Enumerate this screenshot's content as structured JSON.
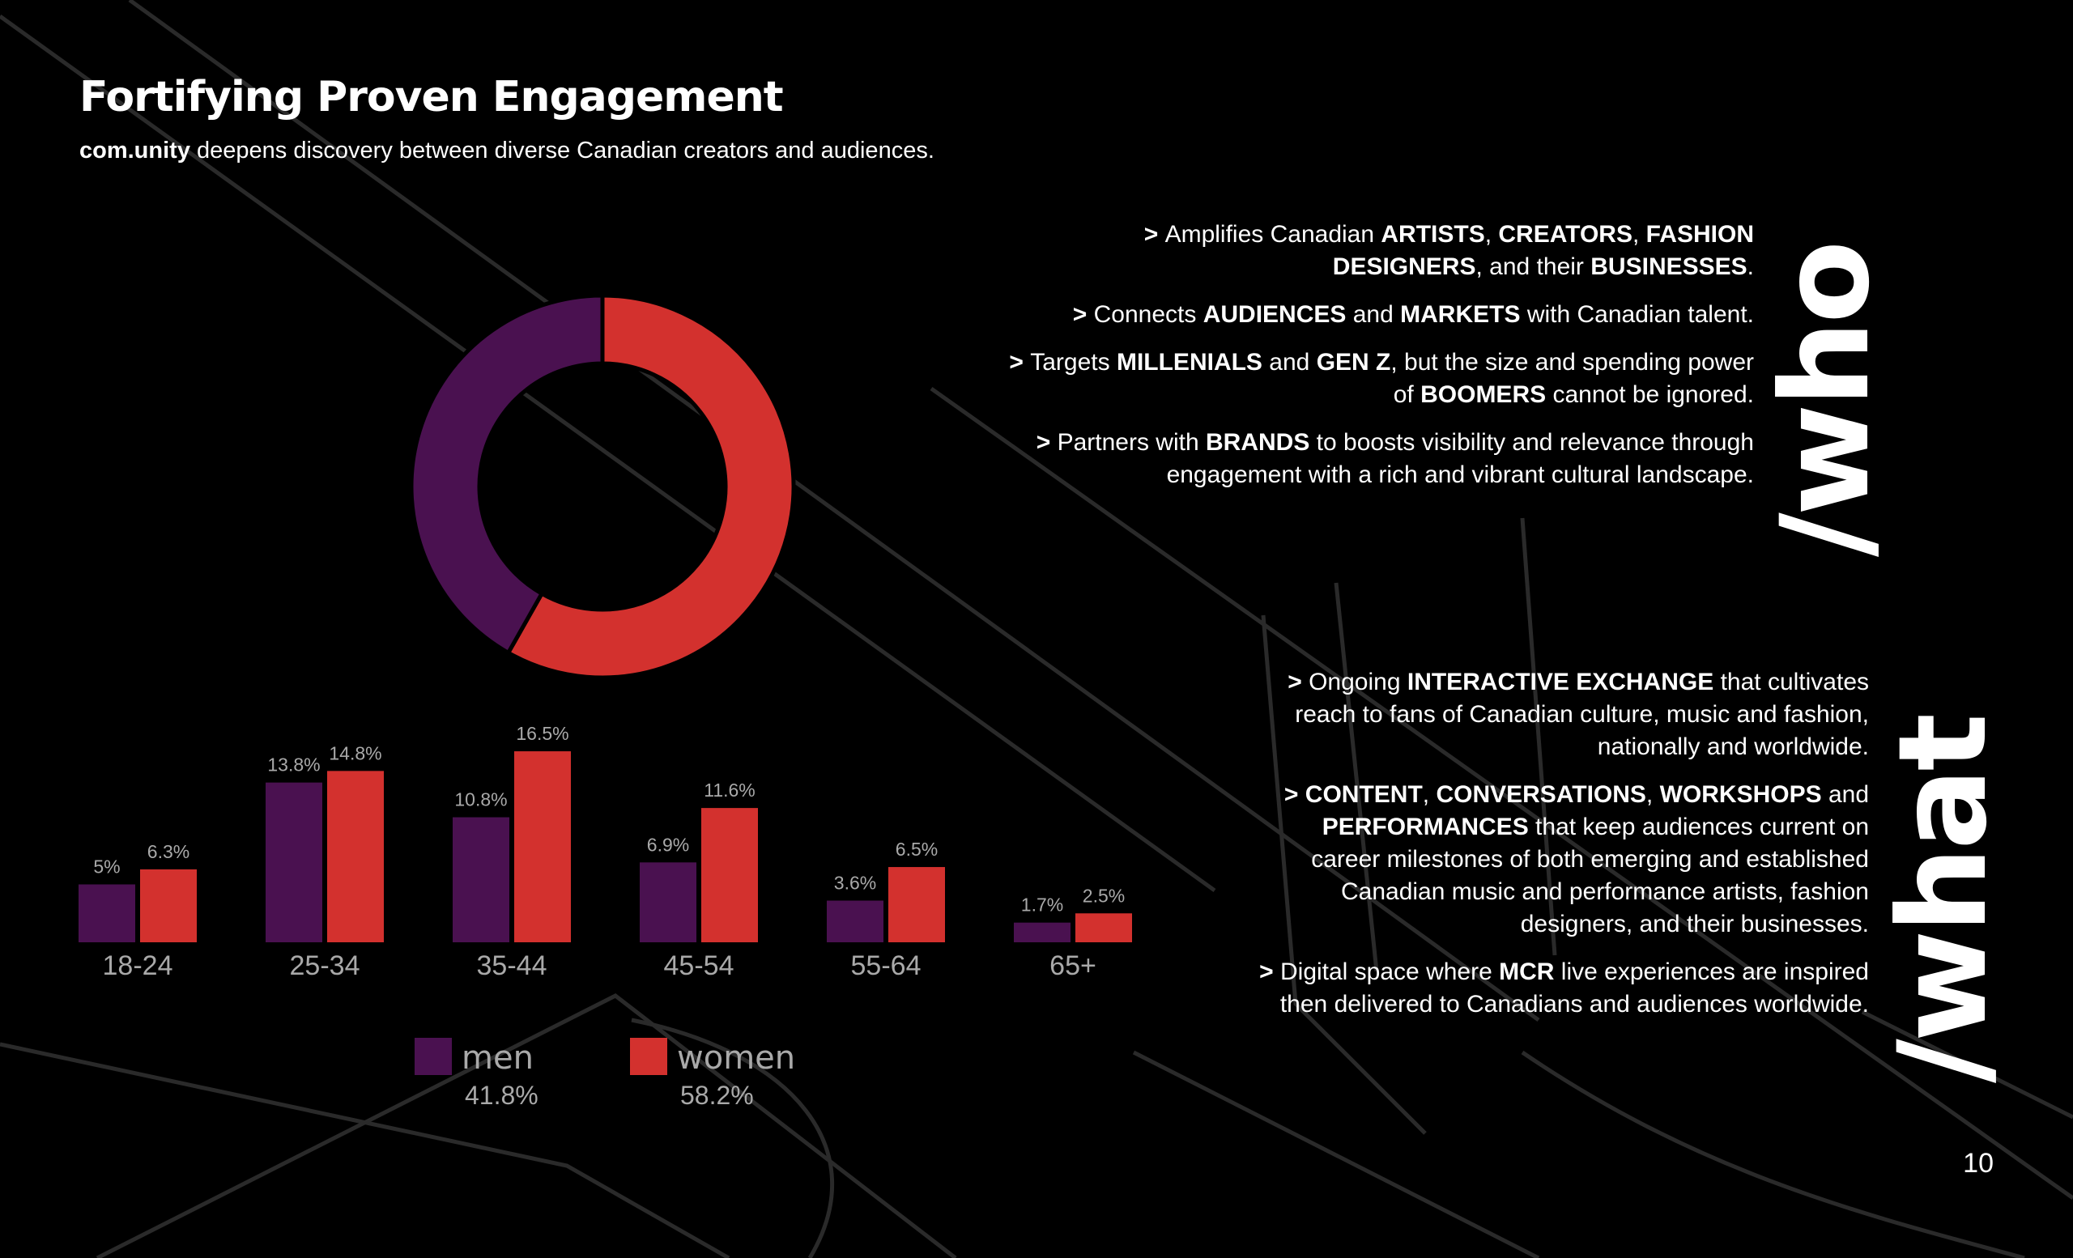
{
  "slide": {
    "title": "Fortifying Proven Engagement",
    "subtitle_brand": "com.unity",
    "subtitle_rest": " deepens discovery between diverse Canadian creators and audiences.",
    "page_number": "10"
  },
  "colors": {
    "men": "#4a1150",
    "women": "#d3312e",
    "background": "#000000",
    "text": "#ffffff",
    "label_gray": "#a9a9a9"
  },
  "who": {
    "heading": "/who",
    "bullets": [
      [
        {
          "t": "> ",
          "b": true
        },
        {
          "t": "Amplifies Canadian "
        },
        {
          "t": "ARTISTS",
          "b": true
        },
        {
          "t": ", "
        },
        {
          "t": "CREATORS",
          "b": true
        },
        {
          "t": ", "
        },
        {
          "t": "FASHION DESIGNERS",
          "b": true
        },
        {
          "t": ", and their "
        },
        {
          "t": "BUSINESSES",
          "b": true
        },
        {
          "t": "."
        }
      ],
      [
        {
          "t": "> ",
          "b": true
        },
        {
          "t": "Connects "
        },
        {
          "t": "AUDIENCES",
          "b": true
        },
        {
          "t": " and "
        },
        {
          "t": "MARKETS",
          "b": true
        },
        {
          "t": " with Canadian talent."
        }
      ],
      [
        {
          "t": "> ",
          "b": true
        },
        {
          "t": "Targets "
        },
        {
          "t": "MILLENIALS",
          "b": true
        },
        {
          "t": " and "
        },
        {
          "t": "GEN Z",
          "b": true
        },
        {
          "t": ", but the size and spending power of "
        },
        {
          "t": "BOOMERS",
          "b": true
        },
        {
          "t": " cannot be ignored."
        }
      ],
      [
        {
          "t": "> ",
          "b": true
        },
        {
          "t": "Partners with "
        },
        {
          "t": "BRANDS",
          "b": true
        },
        {
          "t": " to boosts visibility and relevance through engagement with a rich and vibrant cultural landscape."
        }
      ]
    ]
  },
  "what": {
    "heading": "/what",
    "bullets": [
      [
        {
          "t": "> ",
          "b": true
        },
        {
          "t": "Ongoing "
        },
        {
          "t": "INTERACTIVE EXCHANGE",
          "b": true
        },
        {
          "t": " that cultivates reach to fans of Canadian culture, music and fashion, nationally and worldwide."
        }
      ],
      [
        {
          "t": "> ",
          "b": true
        },
        {
          "t": "CONTENT",
          "b": true
        },
        {
          "t": ", "
        },
        {
          "t": "CONVERSATIONS",
          "b": true
        },
        {
          "t": ", "
        },
        {
          "t": "WORKSHOPS",
          "b": true
        },
        {
          "t": " and "
        },
        {
          "t": "PERFORMANCES",
          "b": true
        },
        {
          "t": " that keep audiences current on career milestones of both emerging and established Canadian music and performance artists, fashion designers, and their businesses."
        }
      ],
      [
        {
          "t": "> ",
          "b": true
        },
        {
          "t": "Digital space where "
        },
        {
          "t": "MCR",
          "b": true
        },
        {
          "t": " live experiences are inspired then delivered to Canadians and audiences worldwide."
        }
      ]
    ]
  },
  "chart_data": [
    {
      "type": "pie",
      "donut": true,
      "labels": [
        "men",
        "women"
      ],
      "values": [
        41.8,
        58.2
      ],
      "colors": [
        "#4a1150",
        "#d3312e"
      ]
    },
    {
      "type": "bar",
      "categories": [
        "18-24",
        "25-34",
        "35-44",
        "45-54",
        "55-64",
        "65+"
      ],
      "series": [
        {
          "name": "men",
          "values": [
            5,
            13.8,
            10.8,
            6.9,
            3.6,
            1.7
          ],
          "labels": [
            "5%",
            "13.8%",
            "10.8%",
            "6.9%",
            "3.6%",
            "1.7%"
          ],
          "color": "#4a1150"
        },
        {
          "name": "women",
          "values": [
            6.3,
            14.8,
            16.5,
            11.6,
            6.5,
            2.5
          ],
          "labels": [
            "6.3%",
            "14.8%",
            "16.5%",
            "11.6%",
            "6.5%",
            "2.5%"
          ],
          "color": "#d3312e"
        }
      ],
      "legend": [
        {
          "name": "men",
          "value": "41.8%"
        },
        {
          "name": "women",
          "value": "58.2%"
        }
      ],
      "legend_position": "bottom",
      "grid": false
    }
  ]
}
